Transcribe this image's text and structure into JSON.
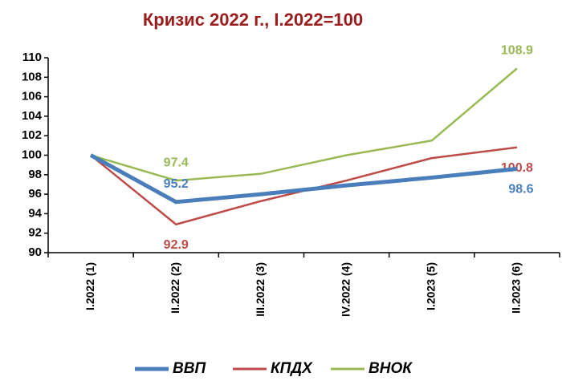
{
  "chart_data": {
    "type": "line",
    "title": "Кризис 2022 г., I.2022=100",
    "categories": [
      "I.2022 (1)",
      "II.2022 (2)",
      "III.2022 (3)",
      "IV.2022 (4)",
      "I.2023 (5)",
      "II.2023 (6)"
    ],
    "series": [
      {
        "name": "ВВП",
        "color": "#4a7ebb",
        "values": [
          100,
          95.2,
          96.0,
          96.9,
          97.7,
          98.6
        ],
        "value_labels": [
          null,
          "95.2",
          null,
          null,
          null,
          "98.6"
        ]
      },
      {
        "name": "КПДХ",
        "color": "#be4b48",
        "values": [
          100,
          92.9,
          95.3,
          97.4,
          99.7,
          100.8
        ],
        "value_labels": [
          null,
          "92.9",
          null,
          null,
          null,
          "100.8"
        ]
      },
      {
        "name": "ВНОК",
        "color": "#98b954",
        "values": [
          100,
          97.4,
          98.1,
          100.0,
          101.5,
          108.9
        ],
        "value_labels": [
          null,
          "97.4",
          null,
          null,
          null,
          "108.9"
        ]
      }
    ],
    "ylim": [
      90,
      110
    ],
    "yticks": [
      90,
      92,
      94,
      96,
      98,
      100,
      102,
      104,
      106,
      108,
      110
    ],
    "grid": false
  }
}
